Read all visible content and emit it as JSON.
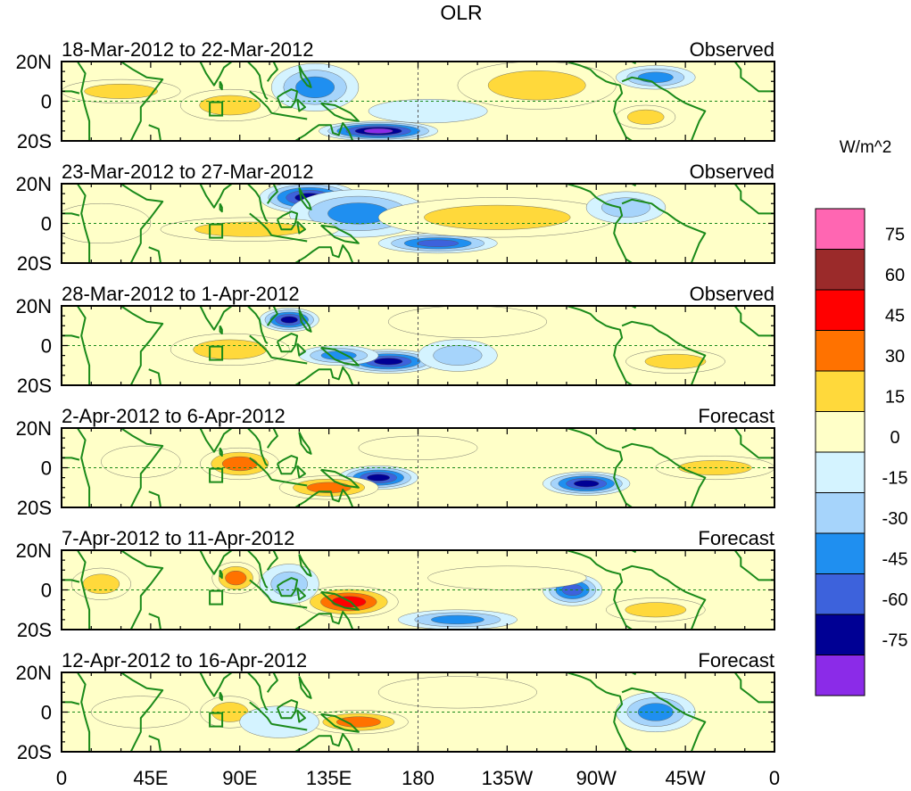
{
  "chart_data": {
    "type": "heatmap",
    "title": "OLR",
    "units": "W/m^2",
    "x_ticks": [
      "0",
      "45E",
      "90E",
      "135E",
      "180",
      "135W",
      "90W",
      "45W",
      "0"
    ],
    "y_ticks": [
      "20N",
      "0",
      "20S"
    ],
    "x_range": [
      0,
      360
    ],
    "y_range": [
      -20,
      20
    ],
    "colorbar": {
      "labels": [
        "75",
        "60",
        "45",
        "30",
        "15",
        "0",
        "-15",
        "-30",
        "-45",
        "-60",
        "-75"
      ],
      "levels": [
        75,
        60,
        45,
        30,
        15,
        0,
        -15,
        -30,
        -45,
        -60,
        -75
      ],
      "colors": [
        "#ff66b2",
        "#9b2a2a",
        "#ff0000",
        "#ff7200",
        "#ffd93b",
        "#ffffc8",
        "#d4f3ff",
        "#a6d4fb",
        "#1f8ff0",
        "#3d62dc",
        "#000094",
        "#8b2be8"
      ]
    },
    "panels": [
      {
        "period": "18-Mar-2012 to 22-Mar-2012",
        "kind": "Observed",
        "blobs": [
          {
            "lon": 160,
            "lat": -15,
            "w": 30,
            "h": 5,
            "v": -80
          },
          {
            "lon": 128,
            "lat": 7,
            "w": 22,
            "h": 12,
            "v": -45
          },
          {
            "lon": 240,
            "lat": 8,
            "w": 40,
            "h": 12,
            "v": 22
          },
          {
            "lon": 85,
            "lat": -2,
            "w": 25,
            "h": 8,
            "v": 25
          },
          {
            "lon": 30,
            "lat": 5,
            "w": 30,
            "h": 6,
            "v": 20
          },
          {
            "lon": 300,
            "lat": 12,
            "w": 20,
            "h": 6,
            "v": -35
          },
          {
            "lon": 185,
            "lat": -5,
            "w": 30,
            "h": 6,
            "v": -15
          },
          {
            "lon": 295,
            "lat": -8,
            "w": 15,
            "h": 6,
            "v": 25
          }
        ]
      },
      {
        "period": "23-Mar-2012 to 27-Mar-2012",
        "kind": "Observed",
        "blobs": [
          {
            "lon": 125,
            "lat": 13,
            "w": 25,
            "h": 8,
            "v": -70
          },
          {
            "lon": 150,
            "lat": 5,
            "w": 35,
            "h": 12,
            "v": -40
          },
          {
            "lon": 190,
            "lat": -10,
            "w": 30,
            "h": 5,
            "v": -60
          },
          {
            "lon": 95,
            "lat": -3,
            "w": 45,
            "h": 6,
            "v": 30
          },
          {
            "lon": 220,
            "lat": 3,
            "w": 60,
            "h": 10,
            "v": 22
          },
          {
            "lon": 285,
            "lat": 8,
            "w": 20,
            "h": 8,
            "v": -20
          },
          {
            "lon": 20,
            "lat": 0,
            "w": 25,
            "h": 10,
            "v": 15
          }
        ]
      },
      {
        "period": "28-Mar-2012 to 1-Apr-2012",
        "kind": "Observed",
        "blobs": [
          {
            "lon": 165,
            "lat": -8,
            "w": 25,
            "h": 6,
            "v": -70
          },
          {
            "lon": 115,
            "lat": 13,
            "w": 15,
            "h": 6,
            "v": -65
          },
          {
            "lon": 140,
            "lat": -5,
            "w": 20,
            "h": 5,
            "v": -40
          },
          {
            "lon": 85,
            "lat": -2,
            "w": 30,
            "h": 8,
            "v": 25
          },
          {
            "lon": 205,
            "lat": 12,
            "w": 40,
            "h": 8,
            "v": 15
          },
          {
            "lon": 310,
            "lat": -8,
            "w": 25,
            "h": 6,
            "v": 25
          },
          {
            "lon": 200,
            "lat": -5,
            "w": 20,
            "h": 8,
            "v": -20
          }
        ]
      },
      {
        "period": "2-Apr-2012 to 6-Apr-2012",
        "kind": "Forecast",
        "blobs": [
          {
            "lon": 160,
            "lat": -5,
            "w": 20,
            "h": 6,
            "v": -70
          },
          {
            "lon": 265,
            "lat": -8,
            "w": 22,
            "h": 6,
            "v": -65
          },
          {
            "lon": 90,
            "lat": 2,
            "w": 20,
            "h": 8,
            "v": 35
          },
          {
            "lon": 135,
            "lat": -10,
            "w": 25,
            "h": 6,
            "v": 40
          },
          {
            "lon": 330,
            "lat": 0,
            "w": 30,
            "h": 6,
            "v": 20
          },
          {
            "lon": 180,
            "lat": 10,
            "w": 30,
            "h": 6,
            "v": 15
          },
          {
            "lon": 40,
            "lat": 3,
            "w": 20,
            "h": 8,
            "v": 15
          }
        ]
      },
      {
        "period": "7-Apr-2012 to 11-Apr-2012",
        "kind": "Forecast",
        "blobs": [
          {
            "lon": 145,
            "lat": -6,
            "w": 25,
            "h": 8,
            "v": 50
          },
          {
            "lon": 88,
            "lat": 6,
            "w": 12,
            "h": 8,
            "v": 35
          },
          {
            "lon": 20,
            "lat": 3,
            "w": 15,
            "h": 8,
            "v": 30
          },
          {
            "lon": 258,
            "lat": 0,
            "w": 15,
            "h": 8,
            "v": -60
          },
          {
            "lon": 200,
            "lat": -15,
            "w": 30,
            "h": 5,
            "v": -40
          },
          {
            "lon": 115,
            "lat": 3,
            "w": 15,
            "h": 10,
            "v": -20
          },
          {
            "lon": 225,
            "lat": 6,
            "w": 40,
            "h": 6,
            "v": 15
          },
          {
            "lon": 300,
            "lat": -10,
            "w": 25,
            "h": 6,
            "v": 20
          }
        ]
      },
      {
        "period": "12-Apr-2012 to 16-Apr-2012",
        "kind": "Forecast",
        "blobs": [
          {
            "lon": 150,
            "lat": -5,
            "w": 25,
            "h": 6,
            "v": 45
          },
          {
            "lon": 85,
            "lat": 0,
            "w": 15,
            "h": 8,
            "v": 25
          },
          {
            "lon": 300,
            "lat": 0,
            "w": 20,
            "h": 10,
            "v": -35
          },
          {
            "lon": 200,
            "lat": 10,
            "w": 40,
            "h": 8,
            "v": 15
          },
          {
            "lon": 110,
            "lat": -5,
            "w": 20,
            "h": 8,
            "v": -15
          },
          {
            "lon": 40,
            "lat": 0,
            "w": 25,
            "h": 8,
            "v": 15
          }
        ]
      }
    ]
  }
}
